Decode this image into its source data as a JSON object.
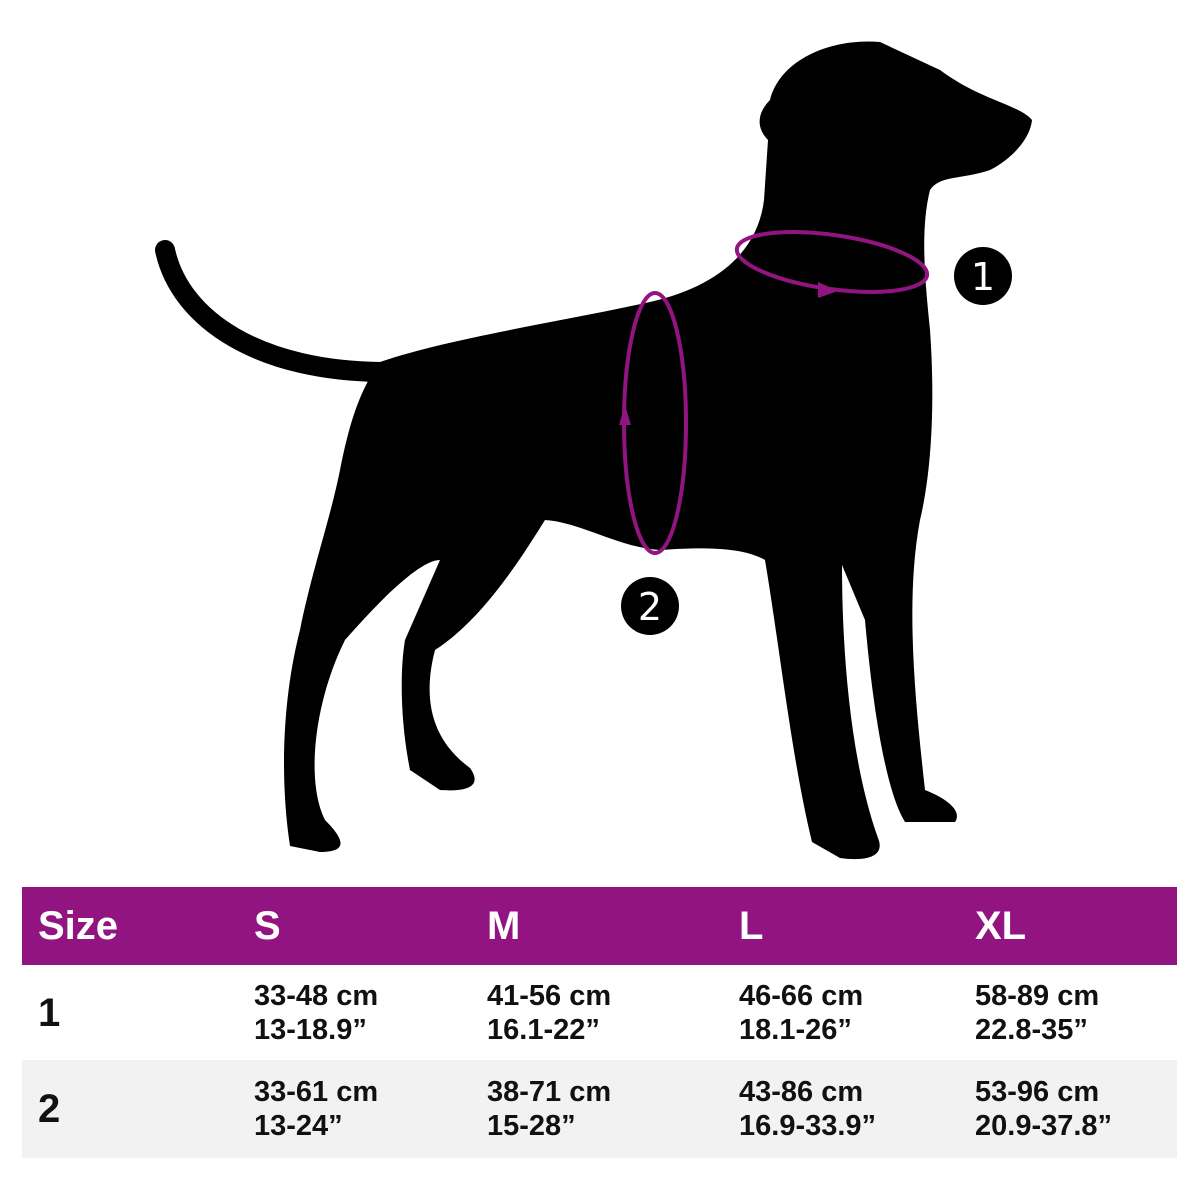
{
  "colors": {
    "accent": "#921480",
    "silhouette": "#000000",
    "row_alt": "#f2f2f2"
  },
  "figure": {
    "markers": [
      {
        "label": "1",
        "target": "neck"
      },
      {
        "label": "2",
        "target": "chest"
      }
    ]
  },
  "table": {
    "headers": [
      "Size",
      "S",
      "M",
      "L",
      "XL"
    ],
    "rows": [
      {
        "label": "1",
        "cells": [
          [
            "33-48 cm",
            "13-18.9”"
          ],
          [
            "41-56 cm",
            "16.1-22”"
          ],
          [
            "46-66 cm",
            "18.1-26”"
          ],
          [
            "58-89 cm",
            "22.8-35”"
          ]
        ]
      },
      {
        "label": "2",
        "cells": [
          [
            "33-61 cm",
            "13-24”"
          ],
          [
            "38-71 cm",
            "15-28”"
          ],
          [
            "43-86 cm",
            "16.9-33.9”"
          ],
          [
            "53-96 cm",
            "20.9-37.8”"
          ]
        ]
      }
    ]
  }
}
